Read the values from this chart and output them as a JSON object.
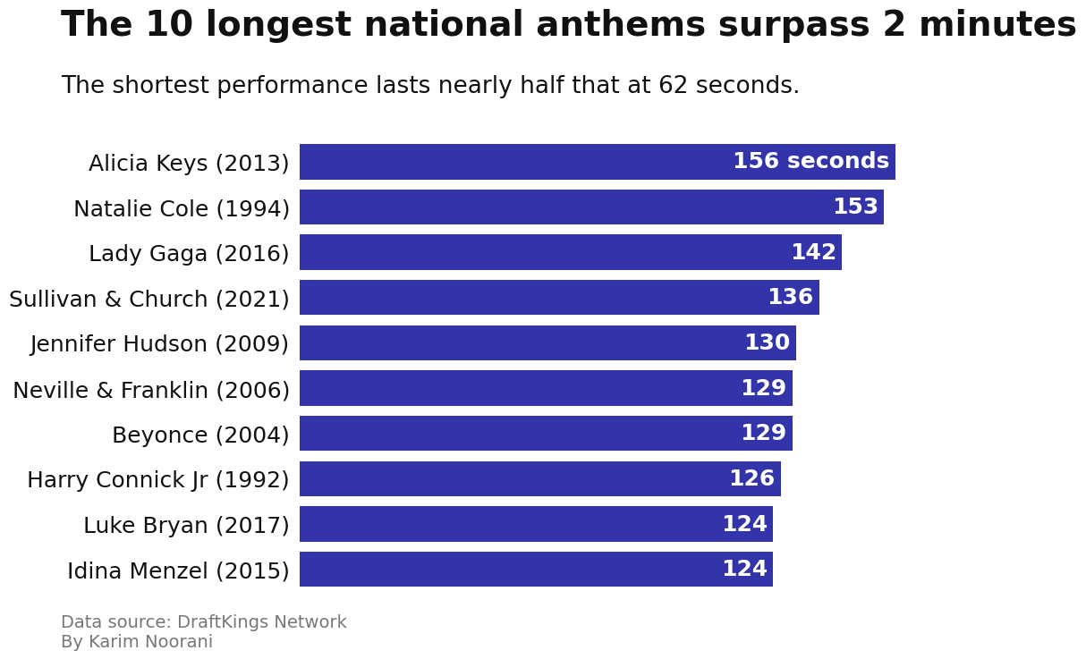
{
  "title": "The 10 longest national anthems surpass 2 minutes",
  "subtitle": "The shortest performance lasts nearly half that at 62 seconds.",
  "categories": [
    "Alicia Keys (2013)",
    "Natalie Cole (1994)",
    "Lady Gaga (2016)",
    "Sullivan & Church (2021)",
    "Jennifer Hudson (2009)",
    "Neville & Franklin (2006)",
    "Beyonce (2004)",
    "Harry Connick Jr (1992)",
    "Luke Bryan (2017)",
    "Idina Menzel (2015)"
  ],
  "values": [
    156,
    153,
    142,
    136,
    130,
    129,
    129,
    126,
    124,
    124
  ],
  "bar_color": "#3333aa",
  "label_color": "#ffffff",
  "title_fontsize": 28,
  "subtitle_fontsize": 19,
  "tick_fontsize": 18,
  "label_fontsize": 18,
  "footer_fontsize": 14,
  "footer_text": "Data source: DraftKings Network\nBy Karim Noorani",
  "background_color": "#ffffff",
  "text_color": "#111111",
  "footer_color": "#777777",
  "xlim": [
    0,
    170
  ],
  "bar_height": 0.78,
  "first_label": "156 seconds"
}
